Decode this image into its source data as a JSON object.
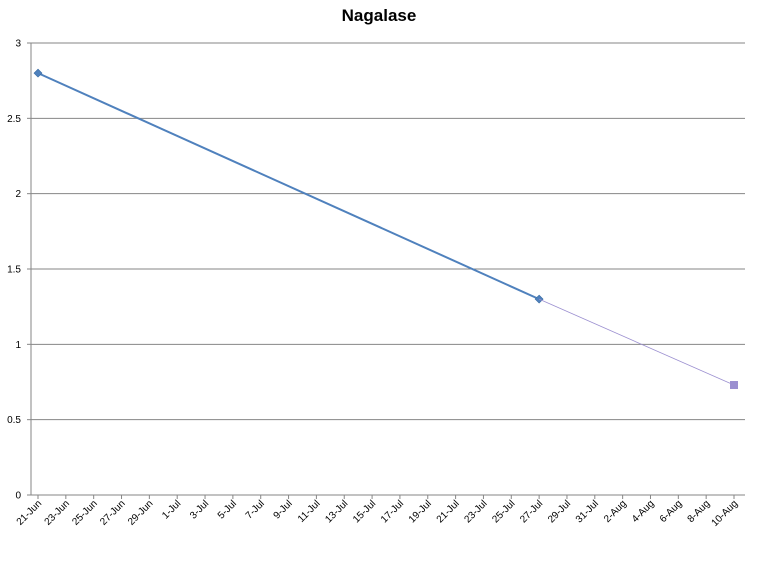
{
  "chart_data": {
    "type": "line",
    "title": "Nagalase",
    "xlabel": "",
    "ylabel": "",
    "ylim": [
      0,
      3
    ],
    "yticks": [
      "0",
      "0.5",
      "1",
      "1.5",
      "2",
      "2.5",
      "3"
    ],
    "xlim": [
      "2010-06-21",
      "2010-08-10"
    ],
    "xtick_labels": [
      "21-Jun",
      "23-Jun",
      "25-Jun",
      "27-Jun",
      "29-Jun",
      "1-Jul",
      "3-Jul",
      "5-Jul",
      "7-Jul",
      "9-Jul",
      "11-Jul",
      "13-Jul",
      "15-Jul",
      "17-Jul",
      "19-Jul",
      "21-Jul",
      "23-Jul",
      "25-Jul",
      "27-Jul",
      "29-Jul",
      "31-Jul",
      "2-Aug",
      "4-Aug",
      "6-Aug",
      "8-Aug",
      "10-Aug"
    ],
    "grid": "horizontal",
    "legend": "none",
    "series": [
      {
        "x": [
          "2010-06-21",
          "2010-07-27"
        ],
        "y": [
          2.8,
          1.3
        ],
        "color": "#4f81bd",
        "marker": "diamond",
        "line": "solid"
      },
      {
        "x": [
          "2010-07-27",
          "2010-08-10"
        ],
        "y": [
          1.3,
          0.73
        ],
        "color": "#9b8fd0",
        "marker": "square",
        "line": "thin"
      }
    ]
  }
}
